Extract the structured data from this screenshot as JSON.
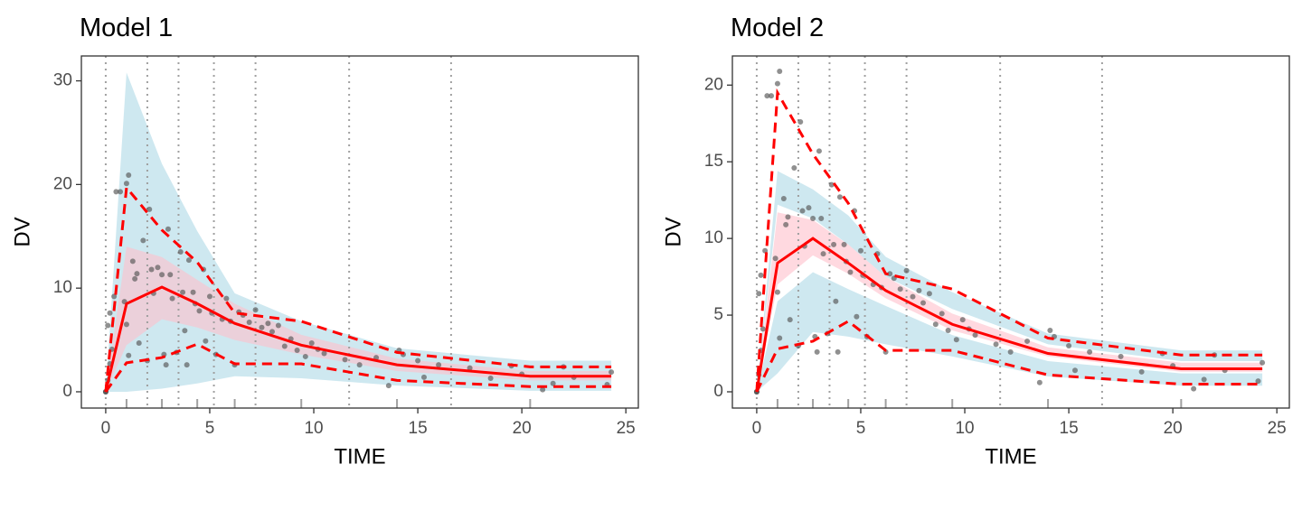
{
  "chart_data": [
    {
      "type": "vpc",
      "title": "Model 1",
      "xlabel": "TIME",
      "ylabel": "DV",
      "xlim": [
        -1.17,
        25.6
      ],
      "ylim": [
        -1.57,
        32.4
      ],
      "xticks": [
        0,
        5,
        10,
        15,
        20,
        25
      ],
      "yticks": [
        0,
        10,
        20,
        30
      ],
      "bin_edges": [
        0,
        2.0,
        3.5,
        5.2,
        7.2,
        11.7,
        16.6
      ],
      "rug": [
        1.0,
        2.7,
        4.4,
        6.2,
        9.4,
        14.0,
        20.4
      ],
      "x": [
        0,
        1.0,
        2.7,
        4.4,
        6.2,
        9.4,
        14.0,
        20.4,
        24.3
      ],
      "ribbons": [
        {
          "color": "#add8e6",
          "lower": [
            0,
            0,
            0.3,
            0.8,
            1.5,
            1.3,
            0.6,
            0.1,
            0.1
          ],
          "upper": [
            0,
            30.8,
            22,
            15.5,
            9.5,
            6.8,
            4.2,
            3,
            3
          ]
        },
        {
          "color": "#ffc0cb",
          "lower": [
            0,
            4.5,
            7,
            6.2,
            5,
            3.6,
            2,
            1.1,
            1.1
          ],
          "upper": [
            0,
            14,
            13,
            10.8,
            8.5,
            5.5,
            3.2,
            2,
            2
          ]
        }
      ],
      "series": [
        {
          "color": "#ff0000",
          "dashed": false,
          "values": [
            0,
            8.5,
            10.1,
            8.5,
            6.6,
            4.5,
            2.6,
            1.5,
            1.5
          ]
        },
        {
          "color": "#ff0000",
          "dashed": true,
          "values": [
            0,
            19.7,
            15.6,
            12.5,
            7.6,
            6.8,
            3.8,
            2.4,
            2.4
          ]
        },
        {
          "color": "#ff0000",
          "dashed": true,
          "values": [
            0,
            2.8,
            3.3,
            4.6,
            2.7,
            2.7,
            1.1,
            0.5,
            0.5
          ]
        }
      ],
      "observations": {
        "color": "#555555",
        "x": [
          0,
          0,
          0,
          0.1,
          0.1,
          0.2,
          0.2,
          0.3,
          0.4,
          0.5,
          0.7,
          0.9,
          1.0,
          1.0,
          1.1,
          1.1,
          1.3,
          1.4,
          1.5,
          1.6,
          1.8,
          2.0,
          2.1,
          2.2,
          2.3,
          2.5,
          2.7,
          2.8,
          2.9,
          3.0,
          3.1,
          3.2,
          3.4,
          3.6,
          3.7,
          3.8,
          3.9,
          4.0,
          4.2,
          4.3,
          4.5,
          4.7,
          4.8,
          5.0,
          5.1,
          5.3,
          5.6,
          5.8,
          6.0,
          6.2,
          6.4,
          6.6,
          6.9,
          7.2,
          7.5,
          7.8,
          8.0,
          8.3,
          8.6,
          8.9,
          9.2,
          9.6,
          9.9,
          10.2,
          10.5,
          11.5,
          12.2,
          13.0,
          13.6,
          14.1,
          14.3,
          15.0,
          15.3,
          16.0,
          17.5,
          18.5,
          19.5,
          20.0,
          21.0,
          21.5,
          22.0,
          22.5,
          24.1,
          24.3
        ],
        "y": [
          0,
          0,
          0,
          1.1,
          6.4,
          2.7,
          7.6,
          4.1,
          9.2,
          19.3,
          19.3,
          8.7,
          20.1,
          6.5,
          20.9,
          3.5,
          12.6,
          10.9,
          11.4,
          4.7,
          14.6,
          3.0,
          17.6,
          11.8,
          9.5,
          12.0,
          11.3,
          3.6,
          2.6,
          15.7,
          11.3,
          9.0,
          3.8,
          13.5,
          9.6,
          5.9,
          2.6,
          12.7,
          9.6,
          8.5,
          7.8,
          11.8,
          4.9,
          9.2,
          7.6,
          3.6,
          7.0,
          9.0,
          6.8,
          2.6,
          7.7,
          7.4,
          6.7,
          7.9,
          6.2,
          6.6,
          5.8,
          6.4,
          4.4,
          5.1,
          4.0,
          3.4,
          4.7,
          4.1,
          3.7,
          3.1,
          2.6,
          3.3,
          0.6,
          4.0,
          3.6,
          3.0,
          1.4,
          2.6,
          2.3,
          1.3,
          2.5,
          1.7,
          0.2,
          0.8,
          2.4,
          1.4,
          0.7,
          1.9
        ]
      }
    },
    {
      "type": "vpc",
      "title": "Model 2",
      "xlabel": "TIME",
      "ylabel": "DV",
      "xlim": [
        -1.17,
        25.6
      ],
      "ylim": [
        -1.06,
        21.9
      ],
      "xticks": [
        0,
        5,
        10,
        15,
        20,
        25
      ],
      "yticks": [
        0,
        5,
        10,
        15,
        20
      ],
      "bin_edges": [
        0,
        2.0,
        3.5,
        5.2,
        7.2,
        11.7,
        16.6
      ],
      "rug": [
        1.0,
        2.7,
        4.4,
        6.2,
        9.4,
        14.0,
        20.4
      ],
      "x": [
        0,
        1.0,
        2.7,
        4.4,
        6.2,
        9.4,
        14.0,
        20.4,
        24.3
      ],
      "ribbons": [
        {
          "color": "#add8e6",
          "lower": [
            0,
            12.2,
            11.3,
            9.6,
            7.5,
            5.4,
            3.1,
            2.0,
            2.0
          ],
          "upper": [
            0,
            14.4,
            13.2,
            11.5,
            8.8,
            6.5,
            3.8,
            2.7,
            2.7
          ]
        },
        {
          "color": "#add8e6",
          "lower": [
            0,
            1.2,
            3.9,
            3.6,
            3.1,
            2.3,
            1.0,
            0.4,
            0.4
          ],
          "upper": [
            0,
            5.9,
            7.8,
            6.7,
            5.6,
            3.7,
            2.0,
            1.2,
            1.2
          ]
        },
        {
          "color": "#ffc0cb",
          "lower": [
            0,
            7.0,
            8.9,
            7.7,
            6.1,
            4.0,
            2.3,
            1.3,
            1.3
          ],
          "upper": [
            0,
            11.7,
            11.2,
            9.6,
            7.5,
            5.1,
            2.9,
            1.9,
            1.9
          ]
        }
      ],
      "series": [
        {
          "color": "#ff0000",
          "dashed": false,
          "values": [
            0,
            8.4,
            10.0,
            8.4,
            6.6,
            4.4,
            2.5,
            1.5,
            1.5
          ]
        },
        {
          "color": "#ff0000",
          "dashed": true,
          "values": [
            0,
            19.5,
            15.5,
            12.3,
            7.7,
            6.7,
            3.5,
            2.4,
            2.4
          ]
        },
        {
          "color": "#ff0000",
          "dashed": true,
          "values": [
            0,
            2.8,
            3.3,
            4.6,
            2.7,
            2.7,
            1.1,
            0.5,
            0.5
          ]
        }
      ],
      "observations": {
        "color": "#555555",
        "x": [
          0,
          0,
          0,
          0.1,
          0.1,
          0.2,
          0.2,
          0.3,
          0.4,
          0.5,
          0.7,
          0.9,
          1.0,
          1.0,
          1.1,
          1.1,
          1.3,
          1.4,
          1.5,
          1.6,
          1.8,
          2.0,
          2.1,
          2.2,
          2.3,
          2.5,
          2.7,
          2.8,
          2.9,
          3.0,
          3.1,
          3.2,
          3.4,
          3.6,
          3.7,
          3.8,
          3.9,
          4.0,
          4.2,
          4.3,
          4.5,
          4.7,
          4.8,
          5.0,
          5.1,
          5.3,
          5.6,
          5.8,
          6.0,
          6.2,
          6.4,
          6.6,
          6.9,
          7.2,
          7.5,
          7.8,
          8.0,
          8.3,
          8.6,
          8.9,
          9.2,
          9.6,
          9.9,
          10.2,
          10.5,
          11.5,
          12.2,
          13.0,
          13.6,
          14.1,
          14.3,
          15.0,
          15.3,
          16.0,
          17.5,
          18.5,
          19.5,
          20.0,
          21.0,
          21.5,
          22.0,
          22.5,
          24.1,
          24.3
        ],
        "y": [
          0,
          0,
          0,
          1.1,
          6.4,
          2.7,
          7.6,
          4.1,
          9.2,
          19.3,
          19.3,
          8.7,
          20.1,
          6.5,
          20.9,
          3.5,
          12.6,
          10.9,
          11.4,
          4.7,
          14.6,
          3.0,
          17.6,
          11.8,
          9.5,
          12.0,
          11.3,
          3.6,
          2.6,
          15.7,
          11.3,
          9.0,
          3.8,
          13.5,
          9.6,
          5.9,
          2.6,
          12.7,
          9.6,
          8.5,
          7.8,
          11.8,
          4.9,
          9.2,
          7.6,
          3.6,
          7.0,
          9.0,
          6.8,
          2.6,
          7.7,
          7.4,
          6.7,
          7.9,
          6.2,
          6.6,
          5.8,
          6.4,
          4.4,
          5.1,
          4.0,
          3.4,
          4.7,
          4.1,
          3.7,
          3.1,
          2.6,
          3.3,
          0.6,
          4.0,
          3.6,
          3.0,
          1.4,
          2.6,
          2.3,
          1.3,
          2.5,
          1.7,
          0.2,
          0.8,
          2.4,
          1.4,
          0.7,
          1.9
        ]
      }
    }
  ]
}
